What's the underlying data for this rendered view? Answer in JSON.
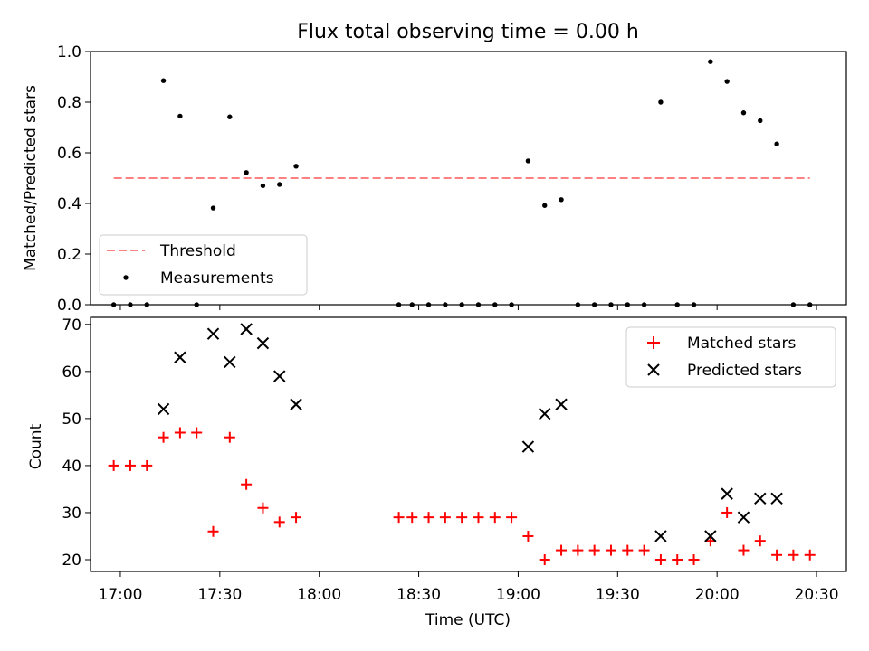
{
  "title": "Flux total observing time = 0.00 h",
  "chart_data": [
    {
      "type": "scatter",
      "ylabel": "Matched/Predicted stars",
      "ylim": [
        0,
        1.0
      ],
      "yticks": [
        0.0,
        0.2,
        0.4,
        0.6,
        0.8,
        1.0
      ],
      "ytick_labels": [
        "0.0",
        "0.2",
        "0.4",
        "0.6",
        "0.8",
        "1.0"
      ],
      "legend_position": "lower-left",
      "threshold": {
        "name": "Threshold",
        "value": 0.5,
        "x_start": "16:58",
        "x_end": "20:28",
        "color": "#ff8080"
      },
      "series": [
        {
          "name": "Measurements",
          "color": "#000000",
          "x": [
            "16:58",
            "17:03",
            "17:08",
            "17:13",
            "17:18",
            "17:23",
            "17:28",
            "17:33",
            "17:38",
            "17:43",
            "17:48",
            "17:53",
            "18:24",
            "18:28",
            "18:33",
            "18:38",
            "18:43",
            "18:48",
            "18:53",
            "18:58",
            "19:03",
            "19:08",
            "19:13",
            "19:18",
            "19:23",
            "19:28",
            "19:33",
            "19:38",
            "19:43",
            "19:48",
            "19:53",
            "19:58",
            "20:03",
            "20:08",
            "20:13",
            "20:18",
            "20:23",
            "20:28"
          ],
          "y": [
            0.0,
            0.0,
            0.0,
            0.885,
            0.745,
            0.0,
            0.382,
            0.742,
            0.522,
            0.47,
            0.475,
            0.547,
            0.0,
            0.0,
            0.0,
            0.0,
            0.0,
            0.0,
            0.0,
            0.0,
            0.568,
            0.392,
            0.415,
            0.0,
            0.0,
            0.0,
            0.0,
            0.0,
            0.8,
            0.0,
            0.0,
            0.96,
            0.882,
            0.758,
            0.727,
            0.635,
            0.0,
            0.0
          ]
        }
      ]
    },
    {
      "type": "scatter",
      "xlabel": "Time (UTC)",
      "ylabel": "Count",
      "xlim": [
        "16:51",
        "20:39"
      ],
      "xticks": [
        "17:00",
        "17:30",
        "18:00",
        "18:30",
        "19:00",
        "19:30",
        "20:00",
        "20:30"
      ],
      "ylim": [
        17.5,
        71.5
      ],
      "yticks": [
        20,
        30,
        40,
        50,
        60,
        70
      ],
      "ytick_labels": [
        "20",
        "30",
        "40",
        "50",
        "60",
        "70"
      ],
      "legend_position": "upper-right",
      "series": [
        {
          "name": "Matched stars",
          "marker": "plus",
          "color": "#ff0000",
          "x": [
            "16:58",
            "17:03",
            "17:08",
            "17:13",
            "17:18",
            "17:23",
            "17:28",
            "17:33",
            "17:38",
            "17:43",
            "17:48",
            "17:53",
            "18:24",
            "18:28",
            "18:33",
            "18:38",
            "18:43",
            "18:48",
            "18:53",
            "18:58",
            "19:03",
            "19:08",
            "19:13",
            "19:18",
            "19:23",
            "19:28",
            "19:33",
            "19:38",
            "19:43",
            "19:48",
            "19:53",
            "19:58",
            "20:03",
            "20:08",
            "20:13",
            "20:18",
            "20:23",
            "20:28"
          ],
          "y": [
            40,
            40,
            40,
            46,
            47,
            47,
            26,
            46,
            36,
            31,
            28,
            29,
            29,
            29,
            29,
            29,
            29,
            29,
            29,
            29,
            25,
            20,
            22,
            22,
            22,
            22,
            22,
            22,
            20,
            20,
            20,
            24,
            30,
            22,
            24,
            21,
            21,
            21
          ]
        },
        {
          "name": "Predicted stars",
          "marker": "x",
          "color": "#000000",
          "x": [
            "17:13",
            "17:18",
            "17:28",
            "17:33",
            "17:38",
            "17:43",
            "17:48",
            "17:53",
            "19:03",
            "19:08",
            "19:13",
            "19:43",
            "19:58",
            "20:03",
            "20:08",
            "20:13",
            "20:18"
          ],
          "y": [
            52,
            63,
            68,
            62,
            69,
            66,
            59,
            53,
            44,
            51,
            53,
            25,
            25,
            34,
            29,
            33,
            33
          ]
        }
      ]
    }
  ]
}
